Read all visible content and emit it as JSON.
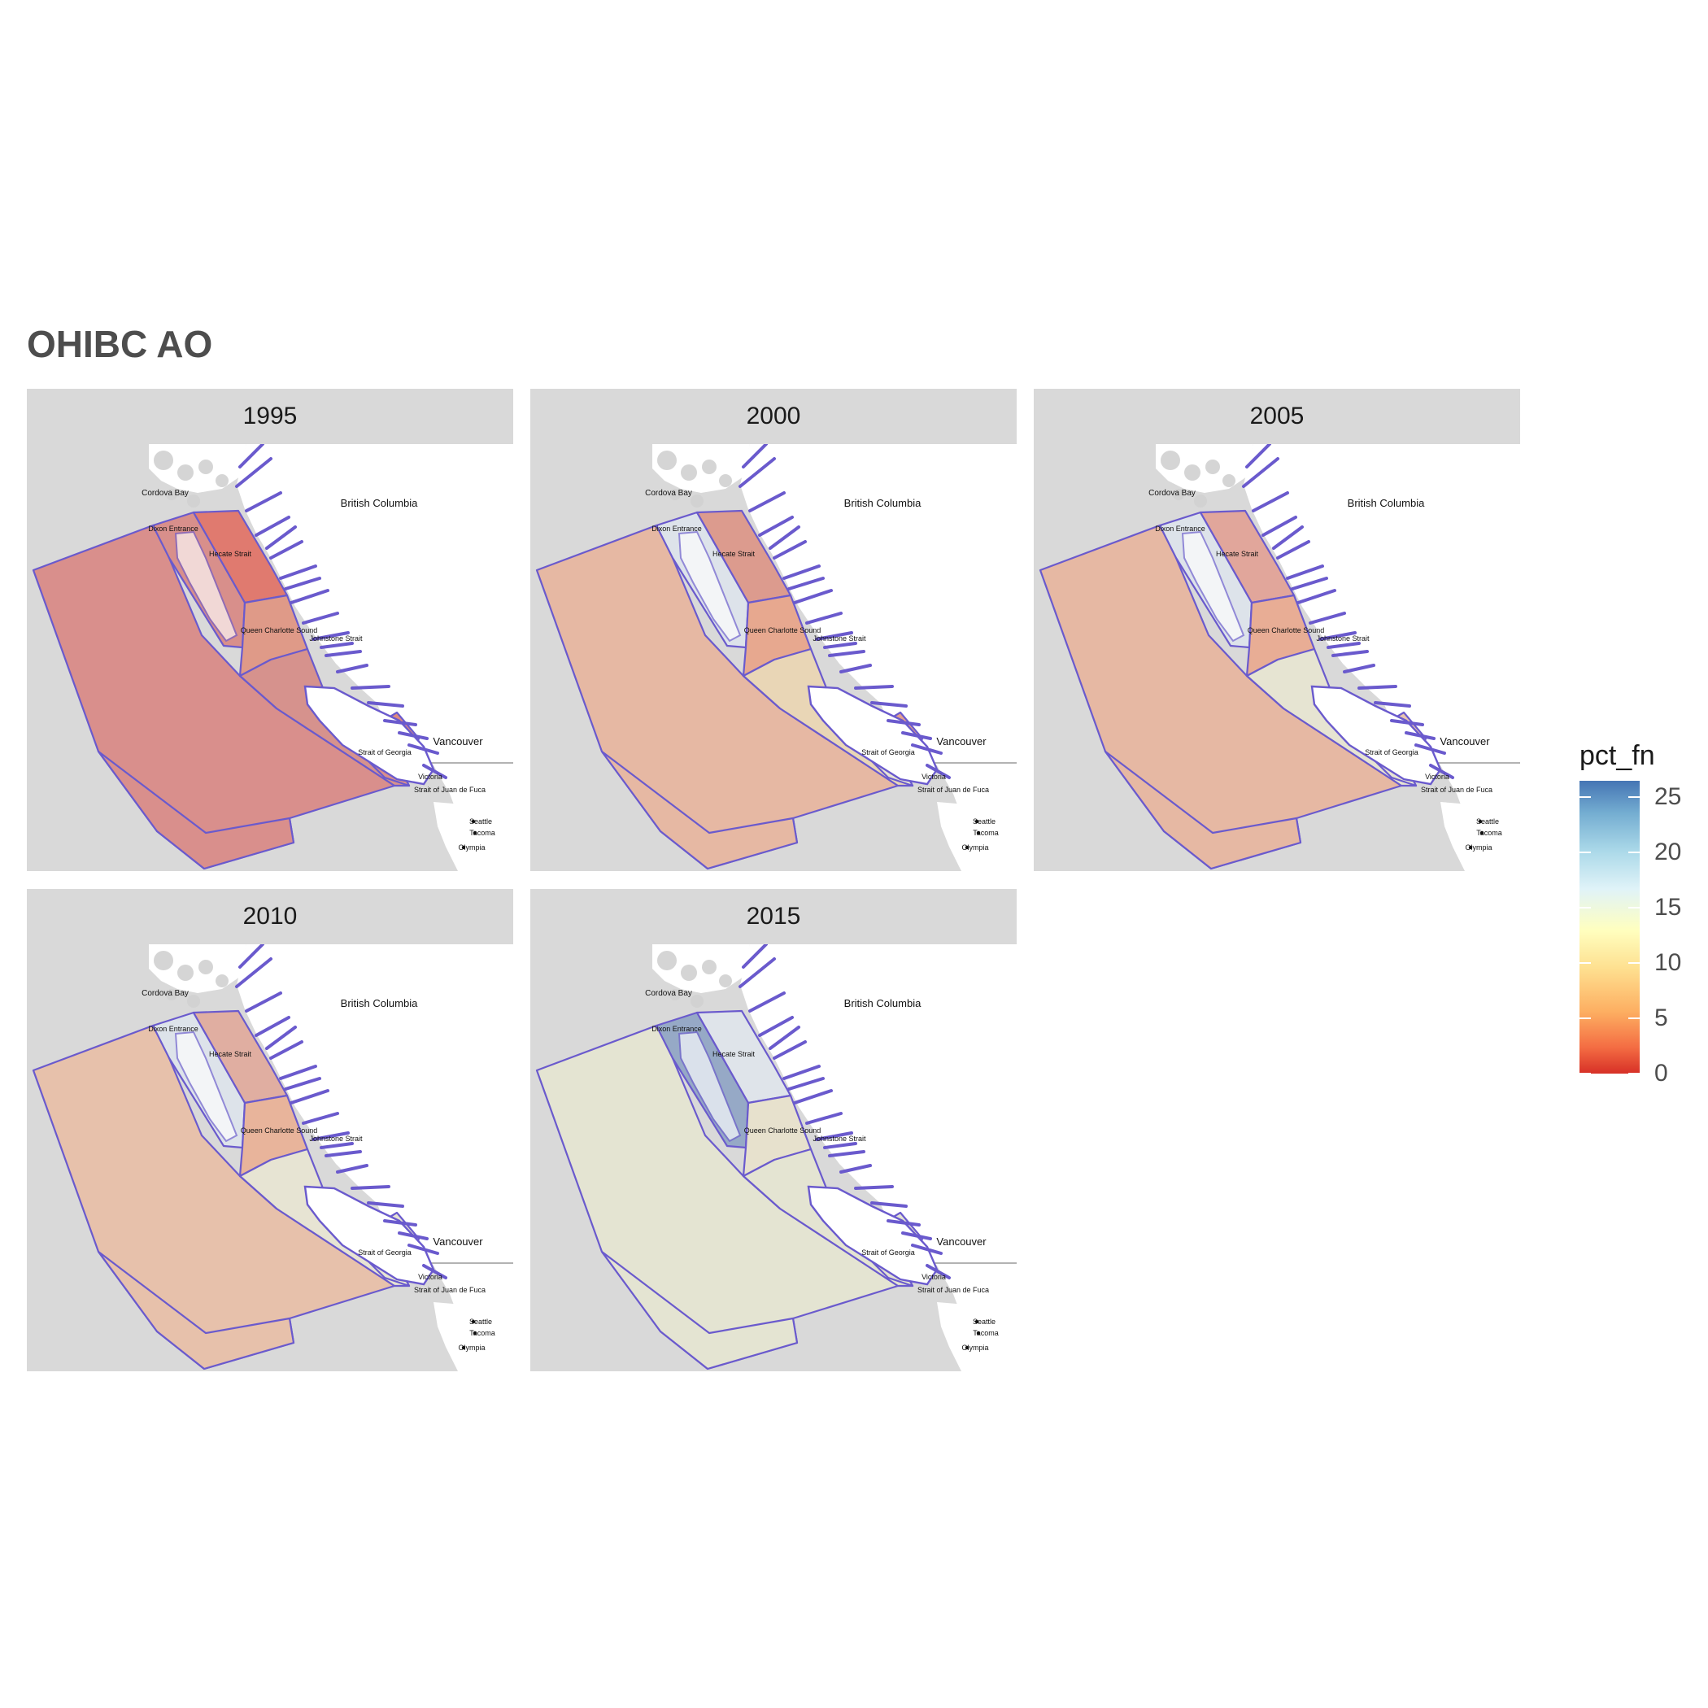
{
  "title": "OHIBC AO",
  "facets": [
    {
      "year": "1995",
      "fills": [
        "#d98f8c",
        "#d88f8b",
        "#e07a6f",
        "#df9a88",
        "#d6928d",
        "#d98f8c",
        "#d98f8c",
        "#e08c7e"
      ]
    },
    {
      "year": "2000",
      "fills": [
        "#e6b8a3",
        "#dde3ea",
        "#dc9b8e",
        "#e7a88f",
        "#e9d6b6",
        "#e7e5d4",
        "#e6b8a3",
        "#e4a08d"
      ]
    },
    {
      "year": "2005",
      "fills": [
        "#e6b8a3",
        "#dde3ea",
        "#e1a69b",
        "#e8ad95",
        "#e6e4d2",
        "#e7e5d4",
        "#e6b8a3",
        "#e8c5b0"
      ]
    },
    {
      "year": "2010",
      "fills": [
        "#e7c1ab",
        "#dde3ea",
        "#e0aea1",
        "#e8b49b",
        "#e7e4d3",
        "#e7e5d4",
        "#e7c1ab",
        "#e7e4d3"
      ]
    },
    {
      "year": "2015",
      "fills": [
        "#e4e4d2",
        "#96a9c6",
        "#dfe4ea",
        "#e7e1cd",
        "#e4e4d2",
        "#e4e4d2",
        "#e4e4d2",
        "#e4e4d2"
      ]
    }
  ],
  "places": {
    "cordova_bay": "Cordova Bay",
    "dixon_entrance": "Dixon Entrance",
    "hecate_strait": "Hecate Strait",
    "british_columbia": "British Columbia",
    "queen_charlotte_sound": "Queen Charlotte Sound",
    "johnstone_strait": "Johnstone Strait",
    "strait_of_georgia": "Strait of Georgia",
    "vancouver": "Vancouver",
    "victoria": "Victoria",
    "juan_de_fuca": "Strait of Juan de Fuca",
    "seattle": "Seattle",
    "tacoma": "Tacoma",
    "olympia": "Olympia"
  },
  "legend": {
    "title": "pct_fn",
    "min": 0,
    "max": 26.5,
    "ticks": [
      "0",
      "5",
      "10",
      "15",
      "20",
      "25"
    ],
    "colors": [
      "#d73027",
      "#f46d43",
      "#fdae61",
      "#fee090",
      "#ffffbf",
      "#e0f3f8",
      "#abd9e9",
      "#74add1",
      "#4575b4"
    ]
  },
  "outline_color": "#6a5acd",
  "land_color": "#ffffff",
  "ocean_color": "#d9d9d9"
}
